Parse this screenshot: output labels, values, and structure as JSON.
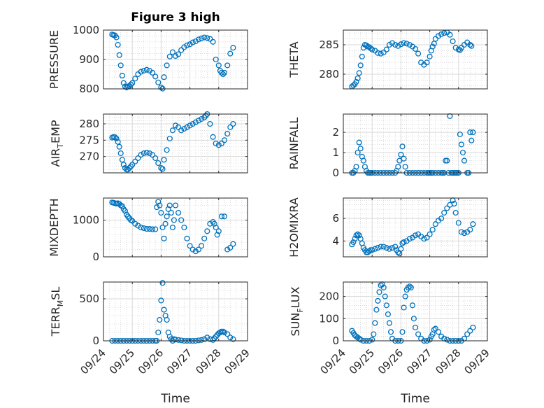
{
  "figure": {
    "title": "Figure 3 high",
    "x_axis_label": "Time",
    "marker_color": "#0072BD",
    "grid_color": "#C8C8C8"
  },
  "chart_data": [
    {
      "type": "scatter",
      "ylabel": "PRESSURE",
      "ylim": [
        800,
        1000
      ],
      "yticks": [
        800,
        900,
        1000
      ],
      "xlim": [
        "09/24",
        "09/29"
      ],
      "xticks": [
        "09/24",
        "09/25",
        "09/26",
        "09/27",
        "09/28",
        "09/29"
      ],
      "grid": true,
      "series": [
        {
          "marker": "o",
          "x": [
            0.3,
            0.35,
            0.4,
            0.45,
            0.5,
            0.55,
            0.6,
            0.65,
            0.7,
            0.75,
            0.8,
            0.85,
            0.9,
            0.95,
            1.0,
            1.1,
            1.2,
            1.3,
            1.4,
            1.5,
            1.6,
            1.7,
            1.8,
            1.9,
            2.0,
            2.05,
            2.1,
            2.2,
            2.3,
            2.4,
            2.5,
            2.6,
            2.7,
            2.8,
            2.9,
            3.0,
            3.1,
            3.2,
            3.3,
            3.4,
            3.5,
            3.6,
            3.7,
            3.8,
            3.9,
            4.0,
            4.05,
            4.1,
            4.15,
            4.2,
            4.3,
            4.4,
            4.5
          ],
          "y": [
            985,
            983,
            982,
            975,
            950,
            915,
            880,
            845,
            820,
            808,
            805,
            808,
            810,
            815,
            820,
            835,
            850,
            858,
            862,
            865,
            862,
            855,
            842,
            822,
            805,
            801,
            840,
            880,
            910,
            925,
            912,
            918,
            932,
            942,
            948,
            952,
            958,
            962,
            968,
            972,
            975,
            973,
            970,
            960,
            900,
            880,
            862,
            855,
            850,
            855,
            880,
            920,
            940
          ]
        }
      ]
    },
    {
      "type": "scatter",
      "ylabel": "THETA",
      "ylim": [
        277.5,
        287.5
      ],
      "yticks": [
        280,
        285
      ],
      "xlim": [
        "09/24",
        "09/29"
      ],
      "xticks": [
        "09/24",
        "09/25",
        "09/26",
        "09/27",
        "09/28",
        "09/29"
      ],
      "grid": true,
      "series": [
        {
          "marker": "o",
          "x": [
            0.3,
            0.35,
            0.4,
            0.45,
            0.5,
            0.55,
            0.6,
            0.65,
            0.7,
            0.75,
            0.8,
            0.85,
            0.9,
            0.95,
            1.0,
            1.1,
            1.2,
            1.3,
            1.4,
            1.5,
            1.6,
            1.7,
            1.8,
            1.9,
            2.0,
            2.1,
            2.2,
            2.3,
            2.4,
            2.5,
            2.6,
            2.7,
            2.8,
            2.9,
            3.0,
            3.05,
            3.1,
            3.15,
            3.2,
            3.3,
            3.4,
            3.5,
            3.6,
            3.7,
            3.8,
            3.9,
            4.0,
            4.05,
            4.1,
            4.2,
            4.3,
            4.4,
            4.45
          ],
          "y": [
            277.9,
            278.1,
            278.3,
            278.7,
            279.3,
            280.2,
            281.5,
            283.0,
            284.5,
            285.0,
            284.9,
            284.7,
            284.6,
            284.4,
            284.2,
            284.0,
            283.6,
            283.5,
            283.7,
            284.2,
            285.0,
            285.3,
            285.0,
            284.8,
            285.1,
            285.3,
            285.2,
            285.0,
            284.7,
            284.3,
            283.5,
            282.0,
            281.6,
            282.0,
            283.0,
            284.0,
            284.7,
            285.2,
            286.0,
            286.5,
            286.8,
            287.0,
            287.1,
            286.7,
            285.6,
            284.5,
            284.2,
            284.1,
            284.5,
            285.0,
            285.4,
            285.0,
            284.8
          ]
        }
      ]
    },
    {
      "type": "scatter",
      "ylabel": "AIR_TEMP",
      "ylabel_main": "AIR",
      "ylabel_sub": "T",
      "ylabel_rest": "EMP",
      "ylim": [
        265,
        283
      ],
      "yticks": [
        270,
        275,
        280
      ],
      "xlim": [
        "09/24",
        "09/29"
      ],
      "xticks": [
        "09/24",
        "09/25",
        "09/26",
        "09/27",
        "09/28",
        "09/29"
      ],
      "grid": true,
      "series": [
        {
          "marker": "o",
          "x": [
            0.3,
            0.35,
            0.4,
            0.45,
            0.5,
            0.55,
            0.6,
            0.65,
            0.7,
            0.75,
            0.8,
            0.85,
            0.9,
            0.95,
            1.0,
            1.1,
            1.2,
            1.3,
            1.4,
            1.5,
            1.6,
            1.7,
            1.8,
            1.9,
            2.0,
            2.05,
            2.1,
            2.2,
            2.3,
            2.4,
            2.5,
            2.6,
            2.7,
            2.8,
            2.9,
            3.0,
            3.1,
            3.2,
            3.3,
            3.4,
            3.5,
            3.55,
            3.6,
            3.7,
            3.8,
            3.9,
            4.0,
            4.1,
            4.2,
            4.3,
            4.4,
            4.5
          ],
          "y": [
            275.8,
            276.0,
            275.9,
            275.5,
            274.5,
            273.0,
            271.0,
            269.0,
            267.5,
            266.5,
            266.0,
            266.0,
            266.5,
            267.0,
            267.5,
            268.5,
            269.5,
            270.5,
            271.0,
            271.2,
            271.0,
            270.5,
            269.5,
            268.0,
            266.5,
            266.2,
            269.0,
            272.0,
            275.5,
            278.0,
            279.5,
            279.0,
            278.0,
            278.5,
            279.0,
            279.5,
            280.0,
            280.5,
            281.0,
            281.5,
            282.0,
            282.5,
            283.0,
            280.0,
            276.0,
            274.0,
            273.5,
            274.0,
            275.0,
            277.0,
            279.0,
            280.0
          ]
        }
      ]
    },
    {
      "type": "scatter",
      "ylabel": "RAINFALL",
      "ylim": [
        0,
        2.9
      ],
      "yticks": [
        0,
        1,
        2
      ],
      "xlim": [
        "09/24",
        "09/29"
      ],
      "xticks": [
        "09/24",
        "09/25",
        "09/26",
        "09/27",
        "09/28",
        "09/29"
      ],
      "grid": true,
      "series": [
        {
          "marker": "o",
          "x": [
            0.3,
            0.35,
            0.4,
            0.45,
            0.5,
            0.55,
            0.6,
            0.65,
            0.7,
            0.75,
            0.8,
            0.85,
            0.9,
            0.95,
            1.0,
            1.1,
            1.2,
            1.3,
            1.4,
            1.5,
            1.6,
            1.7,
            1.8,
            1.85,
            1.9,
            1.95,
            2.0,
            2.05,
            2.1,
            2.15,
            2.2,
            2.3,
            2.4,
            2.5,
            2.6,
            2.7,
            2.8,
            2.9,
            2.95,
            3.0,
            3.05,
            3.1,
            3.2,
            3.3,
            3.4,
            3.45,
            3.5,
            3.55,
            3.6,
            3.65,
            3.7,
            3.75,
            3.8,
            3.85,
            3.9,
            3.95,
            4.0,
            4.05,
            4.1,
            4.15,
            4.2,
            4.3,
            4.35,
            4.4,
            4.45,
            4.5
          ],
          "y": [
            0,
            0,
            0.1,
            0.3,
            1.0,
            1.5,
            1.2,
            0.8,
            0.6,
            0.3,
            0.1,
            0,
            0,
            0,
            0,
            0,
            0,
            0,
            0,
            0,
            0,
            0,
            0,
            0.1,
            0.3,
            0.6,
            0.9,
            1.3,
            0.7,
            0.3,
            0,
            0,
            0,
            0,
            0,
            0,
            0,
            0,
            0,
            0,
            0,
            0,
            0,
            0,
            0,
            0,
            0,
            0.6,
            0.6,
            0,
            2.8,
            0,
            0,
            0,
            0,
            0,
            0,
            1.9,
            1.4,
            1.0,
            0.6,
            0,
            0,
            2.0,
            1.6,
            2.0
          ]
        }
      ]
    },
    {
      "type": "scatter",
      "ylabel": "MIXDEPTH",
      "ylim": [
        0,
        1600
      ],
      "yticks": [
        0,
        1000
      ],
      "xlim": [
        "09/24",
        "09/29"
      ],
      "xticks": [
        "09/24",
        "09/25",
        "09/26",
        "09/27",
        "09/28",
        "09/29"
      ],
      "grid": true,
      "series": [
        {
          "marker": "o",
          "x": [
            0.3,
            0.35,
            0.4,
            0.45,
            0.5,
            0.55,
            0.6,
            0.65,
            0.7,
            0.75,
            0.8,
            0.85,
            0.9,
            0.95,
            1.0,
            1.1,
            1.2,
            1.3,
            1.4,
            1.5,
            1.6,
            1.7,
            1.8,
            1.85,
            1.9,
            1.95,
            2.0,
            2.05,
            2.1,
            2.15,
            2.2,
            2.25,
            2.3,
            2.35,
            2.4,
            2.45,
            2.5,
            2.6,
            2.7,
            2.8,
            2.9,
            3.0,
            3.1,
            3.2,
            3.3,
            3.4,
            3.5,
            3.6,
            3.7,
            3.8,
            3.85,
            3.9,
            3.95,
            4.0,
            4.1,
            4.2,
            4.3,
            4.4,
            4.5
          ],
          "y": [
            1480,
            1470,
            1460,
            1450,
            1460,
            1440,
            1400,
            1380,
            1300,
            1250,
            1150,
            1100,
            1050,
            1000,
            980,
            900,
            850,
            800,
            780,
            760,
            760,
            750,
            750,
            1350,
            1500,
            1400,
            1200,
            800,
            500,
            900,
            1100,
            1300,
            1400,
            1200,
            800,
            1000,
            1400,
            1200,
            1000,
            800,
            500,
            300,
            200,
            150,
            200,
            300,
            500,
            700,
            900,
            950,
            900,
            800,
            600,
            700,
            1100,
            1100,
            200,
            250,
            350
          ]
        }
      ]
    },
    {
      "type": "scatter",
      "ylabel": "H2OMIXRA",
      "ylim": [
        2.6,
        7.8
      ],
      "yticks": [
        4,
        6
      ],
      "xlim": [
        "09/24",
        "09/29"
      ],
      "xticks": [
        "09/24",
        "09/25",
        "09/26",
        "09/27",
        "09/28",
        "09/29"
      ],
      "grid": true,
      "series": [
        {
          "marker": "o",
          "x": [
            0.3,
            0.35,
            0.4,
            0.45,
            0.5,
            0.55,
            0.6,
            0.65,
            0.7,
            0.75,
            0.8,
            0.85,
            0.9,
            0.95,
            1.0,
            1.1,
            1.2,
            1.3,
            1.4,
            1.5,
            1.6,
            1.7,
            1.8,
            1.85,
            1.9,
            1.95,
            2.0,
            2.05,
            2.1,
            2.2,
            2.3,
            2.4,
            2.5,
            2.6,
            2.7,
            2.8,
            2.9,
            3.0,
            3.1,
            3.2,
            3.3,
            3.4,
            3.5,
            3.6,
            3.7,
            3.8,
            3.85,
            3.9,
            4.0,
            4.1,
            4.2,
            4.3,
            4.4,
            4.5
          ],
          "y": [
            3.7,
            3.9,
            4.2,
            4.5,
            4.6,
            4.5,
            4.2,
            3.8,
            3.4,
            3.2,
            3.0,
            3.0,
            3.1,
            3.2,
            3.2,
            3.3,
            3.4,
            3.5,
            3.5,
            3.4,
            3.3,
            3.4,
            3.5,
            3.2,
            3.0,
            2.9,
            3.3,
            3.8,
            3.9,
            4.0,
            4.2,
            4.3,
            4.5,
            4.6,
            4.4,
            4.2,
            4.3,
            4.6,
            5.0,
            5.5,
            5.8,
            6.0,
            6.5,
            6.9,
            7.2,
            7.6,
            7.3,
            6.5,
            5.6,
            4.8,
            4.7,
            4.8,
            5.0,
            5.5
          ]
        }
      ]
    },
    {
      "type": "scatter",
      "ylabel": "TERR_MSL",
      "ylabel_main": "TERR",
      "ylabel_sub": "M",
      "ylabel_rest": "SL",
      "ylim": [
        0,
        700
      ],
      "yticks": [
        0,
        500
      ],
      "xlim": [
        "09/24",
        "09/29"
      ],
      "xticks": [
        "09/24",
        "09/25",
        "09/26",
        "09/27",
        "09/28",
        "09/29"
      ],
      "grid": true,
      "series": [
        {
          "marker": "o",
          "x": [
            0.3,
            0.4,
            0.5,
            0.6,
            0.7,
            0.8,
            0.9,
            1.0,
            1.1,
            1.2,
            1.3,
            1.4,
            1.5,
            1.6,
            1.7,
            1.8,
            1.85,
            1.9,
            1.95,
            2.0,
            2.05,
            2.1,
            2.15,
            2.2,
            2.25,
            2.3,
            2.35,
            2.4,
            2.45,
            2.5,
            2.6,
            2.7,
            2.8,
            2.9,
            3.0,
            3.1,
            3.2,
            3.3,
            3.4,
            3.5,
            3.6,
            3.7,
            3.8,
            3.85,
            3.9,
            3.95,
            4.0,
            4.05,
            4.1,
            4.15,
            4.2,
            4.3,
            4.4,
            4.5
          ],
          "y": [
            0,
            0,
            0,
            0,
            0,
            0,
            0,
            0,
            0,
            0,
            0,
            0,
            0,
            0,
            0,
            0,
            0,
            100,
            250,
            480,
            690,
            370,
            300,
            250,
            100,
            50,
            20,
            0,
            20,
            15,
            10,
            5,
            0,
            0,
            0,
            0,
            0,
            5,
            10,
            20,
            40,
            20,
            10,
            30,
            50,
            70,
            90,
            100,
            110,
            110,
            100,
            80,
            40,
            20
          ]
        }
      ]
    },
    {
      "type": "scatter",
      "ylabel": "SUN_FLUX",
      "ylabel_main": "SUN",
      "ylabel_sub": "F",
      "ylabel_rest": "LUX",
      "ylim": [
        0,
        265
      ],
      "yticks": [
        0,
        100,
        200
      ],
      "xlim": [
        "09/24",
        "09/29"
      ],
      "xticks": [
        "09/24",
        "09/25",
        "09/26",
        "09/27",
        "09/28",
        "09/29"
      ],
      "grid": true,
      "series": [
        {
          "marker": "o",
          "x": [
            0.3,
            0.35,
            0.4,
            0.45,
            0.5,
            0.55,
            0.6,
            0.7,
            0.8,
            0.9,
            1.0,
            1.05,
            1.1,
            1.15,
            1.2,
            1.25,
            1.3,
            1.35,
            1.4,
            1.45,
            1.5,
            1.55,
            1.6,
            1.65,
            1.7,
            1.8,
            1.9,
            2.0,
            2.05,
            2.1,
            2.15,
            2.2,
            2.25,
            2.3,
            2.35,
            2.4,
            2.45,
            2.5,
            2.6,
            2.7,
            2.8,
            2.9,
            3.0,
            3.05,
            3.1,
            3.15,
            3.2,
            3.3,
            3.4,
            3.5,
            3.6,
            3.7,
            3.8,
            3.9,
            4.0,
            4.1,
            4.2,
            4.3,
            4.4,
            4.5
          ],
          "y": [
            45,
            35,
            25,
            20,
            15,
            10,
            5,
            0,
            0,
            0,
            5,
            30,
            80,
            140,
            180,
            220,
            250,
            255,
            240,
            200,
            160,
            120,
            80,
            40,
            10,
            0,
            0,
            0,
            40,
            150,
            200,
            230,
            240,
            245,
            240,
            160,
            100,
            60,
            30,
            10,
            0,
            0,
            5,
            20,
            30,
            50,
            55,
            40,
            20,
            10,
            5,
            0,
            0,
            0,
            0,
            0,
            10,
            30,
            45,
            60
          ]
        }
      ]
    }
  ]
}
